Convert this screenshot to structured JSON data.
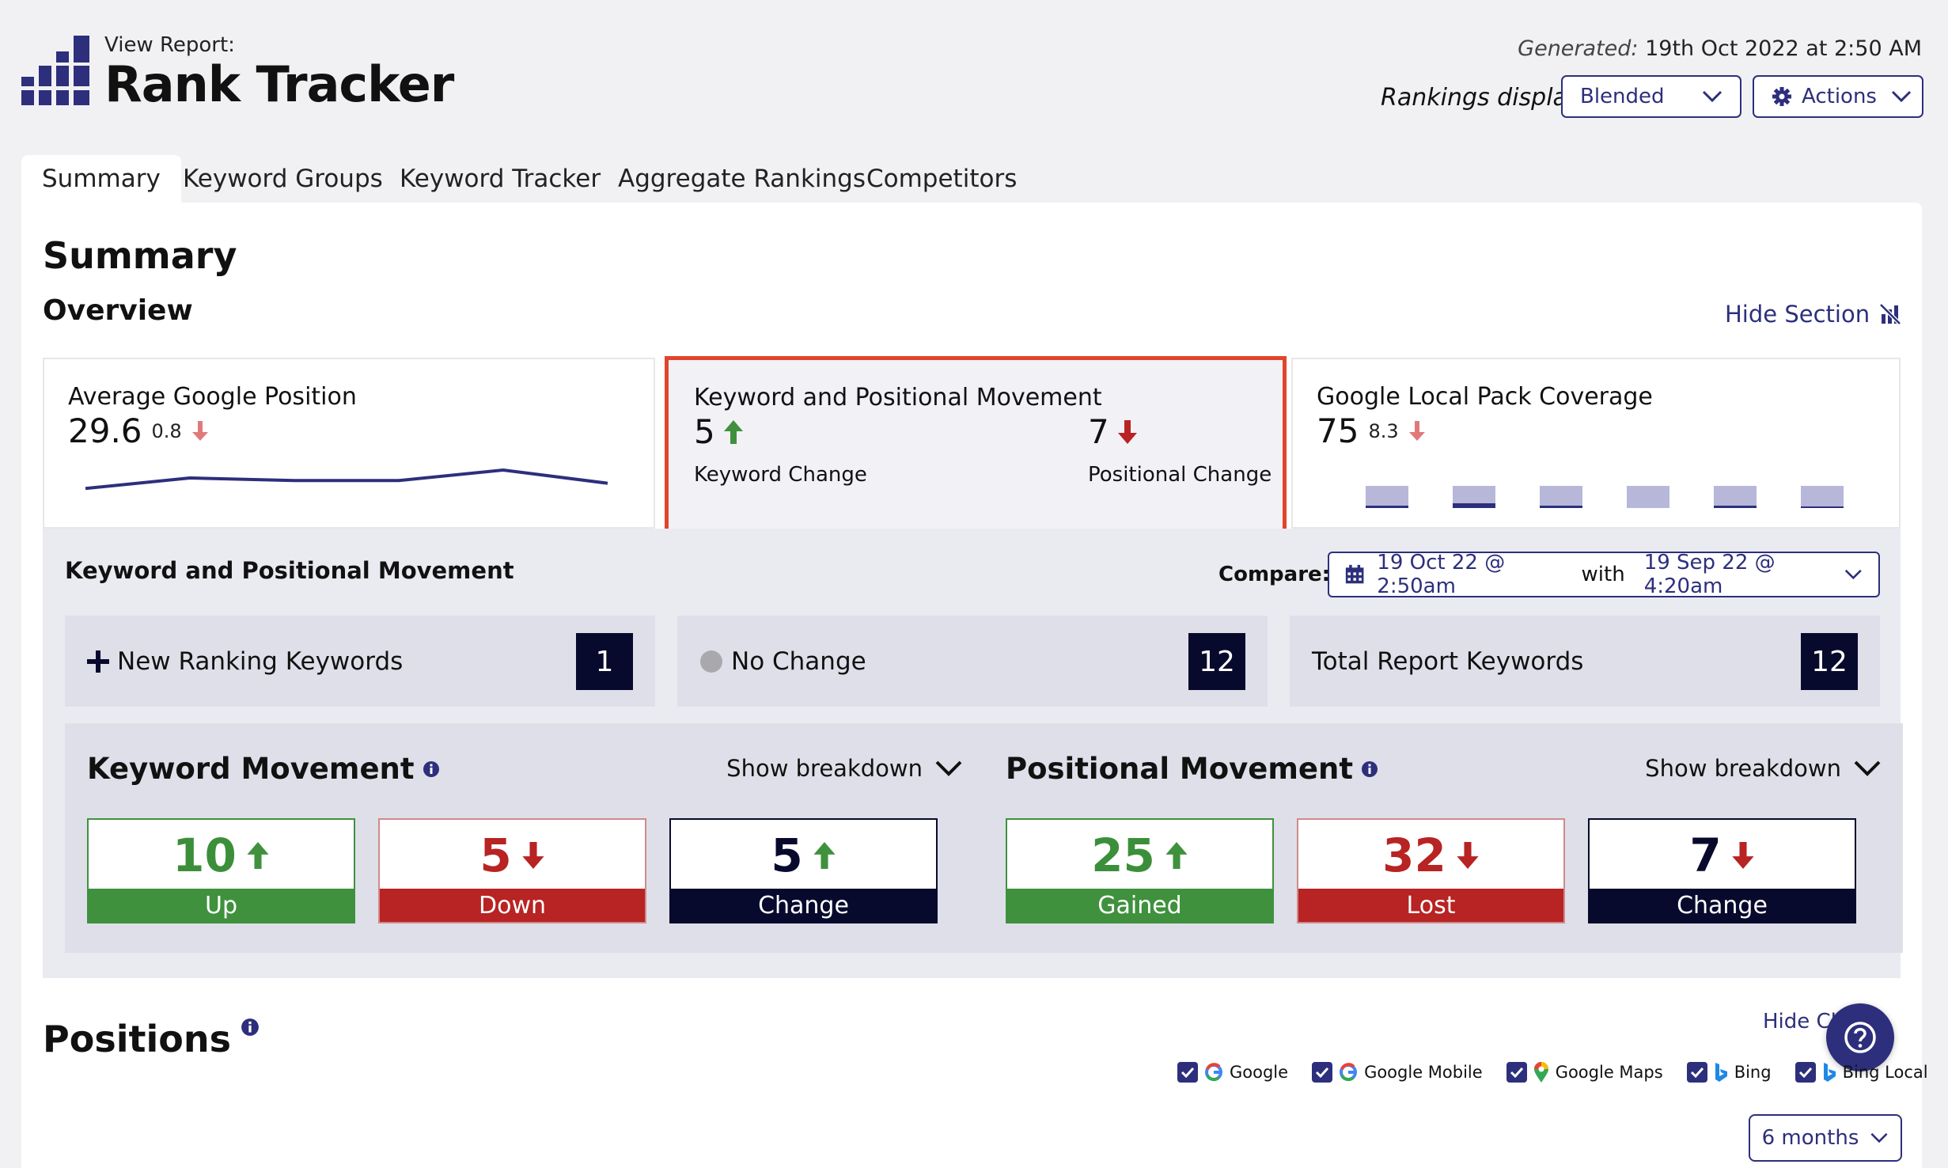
{
  "header": {
    "view_report_label": "View Report:",
    "title": "Rank Tracker",
    "generated_label": "Generated:",
    "generated_value": "19th Oct 2022 at 2:50 AM",
    "rankings_display_label": "Rankings display:",
    "rankings_display_value": "Blended",
    "actions_label": "Actions"
  },
  "tabs": [
    "Summary",
    "Keyword Groups",
    "Keyword Tracker",
    "Aggregate Rankings",
    "Competitors"
  ],
  "active_tab": "Summary",
  "summary": {
    "title": "Summary",
    "overview_title": "Overview",
    "hide_section": "Hide Section"
  },
  "cards": {
    "avg_position": {
      "title": "Average Google Position",
      "value": "29.6",
      "delta": "0.8",
      "sparkline": [
        2,
        6,
        5,
        5,
        9,
        4
      ]
    },
    "movement": {
      "title": "Keyword and Positional Movement",
      "keyword_value": "5",
      "keyword_label": "Keyword Change",
      "positional_value": "7",
      "positional_label": "Positional Change"
    },
    "local_pack": {
      "title": "Google Local Pack Coverage",
      "value": "75",
      "delta": "8.3",
      "bars": [
        3,
        6,
        3,
        0,
        3,
        2
      ]
    }
  },
  "compare": {
    "section_title": "Keyword and Positional Movement",
    "compare_label": "Compare:",
    "from_date": "19 Oct 22 @ 2:50am",
    "with_label": "with",
    "to_date": "19 Sep 22 @ 4:20am"
  },
  "stats": {
    "new_ranking": {
      "label": "New Ranking Keywords",
      "value": "1"
    },
    "no_change": {
      "label": "No Change",
      "value": "12"
    },
    "total": {
      "label": "Total Report Keywords",
      "value": "12"
    }
  },
  "keyword_movement": {
    "title": "Keyword Movement",
    "show_breakdown": "Show breakdown",
    "up": {
      "value": "10",
      "label": "Up"
    },
    "down": {
      "value": "5",
      "label": "Down"
    },
    "change": {
      "value": "5",
      "label": "Change"
    }
  },
  "positional_movement": {
    "title": "Positional Movement",
    "show_breakdown": "Show breakdown",
    "gained": {
      "value": "25",
      "label": "Gained"
    },
    "lost": {
      "value": "32",
      "label": "Lost"
    },
    "change": {
      "value": "7",
      "label": "Change"
    }
  },
  "positions": {
    "title": "Positions",
    "hide_chart": "Hide Ch",
    "engines": [
      "Google",
      "Google Mobile",
      "Google Maps",
      "Bing",
      "Bing Local"
    ],
    "period": "6 months"
  },
  "colors": {
    "navy": "#2d2f7c",
    "dark": "#080a2d",
    "green": "#3f913d",
    "red": "#b82323",
    "highlight": "#e0452b"
  }
}
